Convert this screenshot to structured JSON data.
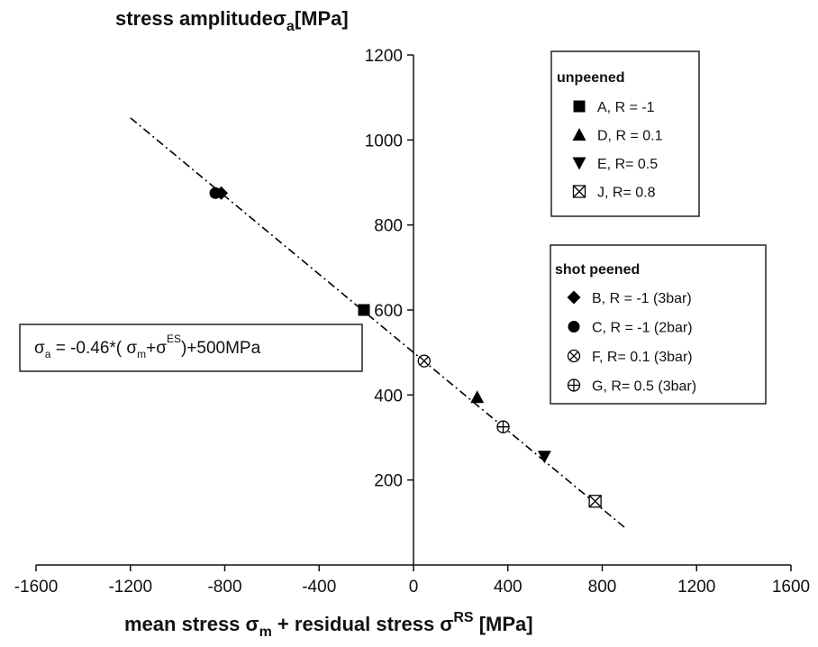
{
  "chart_data": {
    "type": "scatter",
    "y_label_parts": [
      "stress amplitude",
      "σ",
      "a",
      "[MPa]"
    ],
    "x_label_parts": [
      "mean stress   σ",
      "m",
      " + residual stress   σ",
      "RS",
      " [MPa]"
    ],
    "annotation_parts": [
      "σ",
      "a",
      " = -0.46*(  σ",
      "m",
      "+σ",
      "ES",
      ")+500MPa"
    ],
    "xlim": [
      -1600,
      1600
    ],
    "ylim": [
      0,
      1200
    ],
    "xticks": [
      -1600,
      -1200,
      -800,
      -400,
      0,
      400,
      800,
      1200,
      1600
    ],
    "yticks": [
      200,
      400,
      600,
      800,
      1000,
      1200
    ],
    "legend_groups": [
      "unpeened",
      "shot peened"
    ],
    "fit": {
      "x": [
        -1200,
        900
      ],
      "values": [
        1052,
        86
      ],
      "color": "#000000"
    },
    "series": [
      {
        "name": "A, R = -1",
        "group": 0,
        "marker": "square",
        "color": "#000000",
        "x": [
          -210
        ],
        "values": [
          600
        ]
      },
      {
        "name": "D, R = 0.1",
        "group": 0,
        "marker": "triangle-up",
        "color": "#000000",
        "x": [
          270
        ],
        "values": [
          395
        ]
      },
      {
        "name": "E, R= 0.5",
        "group": 0,
        "marker": "triangle-down",
        "color": "#000000",
        "x": [
          555
        ],
        "values": [
          255
        ]
      },
      {
        "name": "J, R= 0.8",
        "group": 0,
        "marker": "crossed-square",
        "color": "#000000",
        "x": [
          770
        ],
        "values": [
          150
        ]
      },
      {
        "name": "B, R = -1 (3bar)",
        "group": 1,
        "marker": "diamond",
        "color": "#000000",
        "x": [
          -815
        ],
        "values": [
          875
        ]
      },
      {
        "name": "C, R = -1 (2bar)",
        "group": 1,
        "marker": "circle",
        "color": "#000000",
        "x": [
          -840
        ],
        "values": [
          875
        ]
      },
      {
        "name": "F, R= 0.1 (3bar)",
        "group": 1,
        "marker": "crossed-circle",
        "color": "#000000",
        "x": [
          45
        ],
        "values": [
          480
        ]
      },
      {
        "name": "G, R= 0.5 (3bar)",
        "group": 1,
        "marker": "plus-circle",
        "color": "#000000",
        "x": [
          380
        ],
        "values": [
          325
        ]
      }
    ]
  }
}
